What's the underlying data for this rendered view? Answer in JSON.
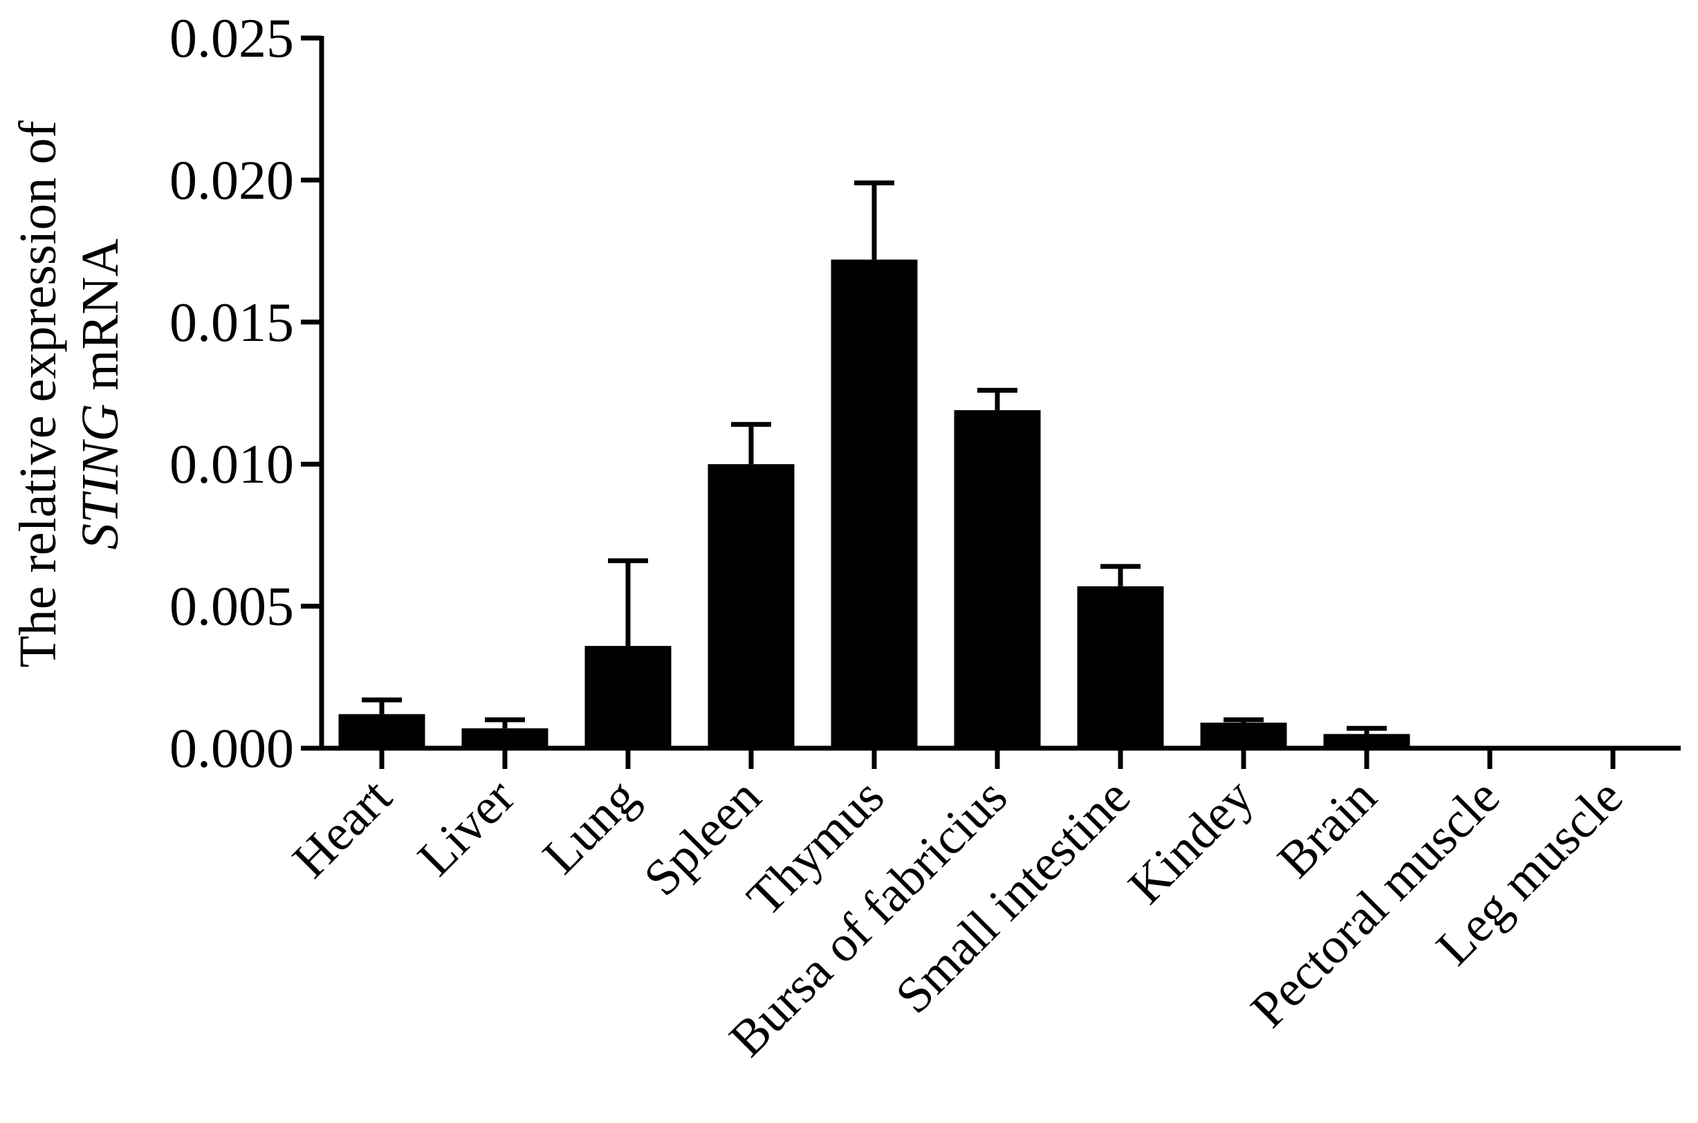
{
  "chart_data": {
    "type": "bar",
    "title": "",
    "xlabel": "",
    "ylabel": {
      "line1": "The relative expression of",
      "line2_italic": "STING",
      "line2_rest": " mRNA"
    },
    "ylim": [
      0,
      0.025
    ],
    "yticks": [
      "0.000",
      "0.005",
      "0.010",
      "0.015",
      "0.020",
      "0.025"
    ],
    "categories": [
      "Heart",
      "Liver",
      "Lung",
      "Spleen",
      "Thymus",
      "Bursa of fabricius",
      "Small intestine",
      "Kindey",
      "Brain",
      "Pectoral muscle",
      "Leg muscle"
    ],
    "values": [
      0.0012,
      0.0007,
      0.0036,
      0.01,
      0.0172,
      0.0119,
      0.0057,
      0.0009,
      0.0005,
      5e-05,
      3e-05
    ],
    "errors": [
      0.0005,
      0.0003,
      0.003,
      0.0014,
      0.0027,
      0.0007,
      0.0007,
      0.0001,
      0.0002,
      2e-05,
      1e-05
    ],
    "bar_color": "#000000",
    "grid": false,
    "legend": "none"
  }
}
